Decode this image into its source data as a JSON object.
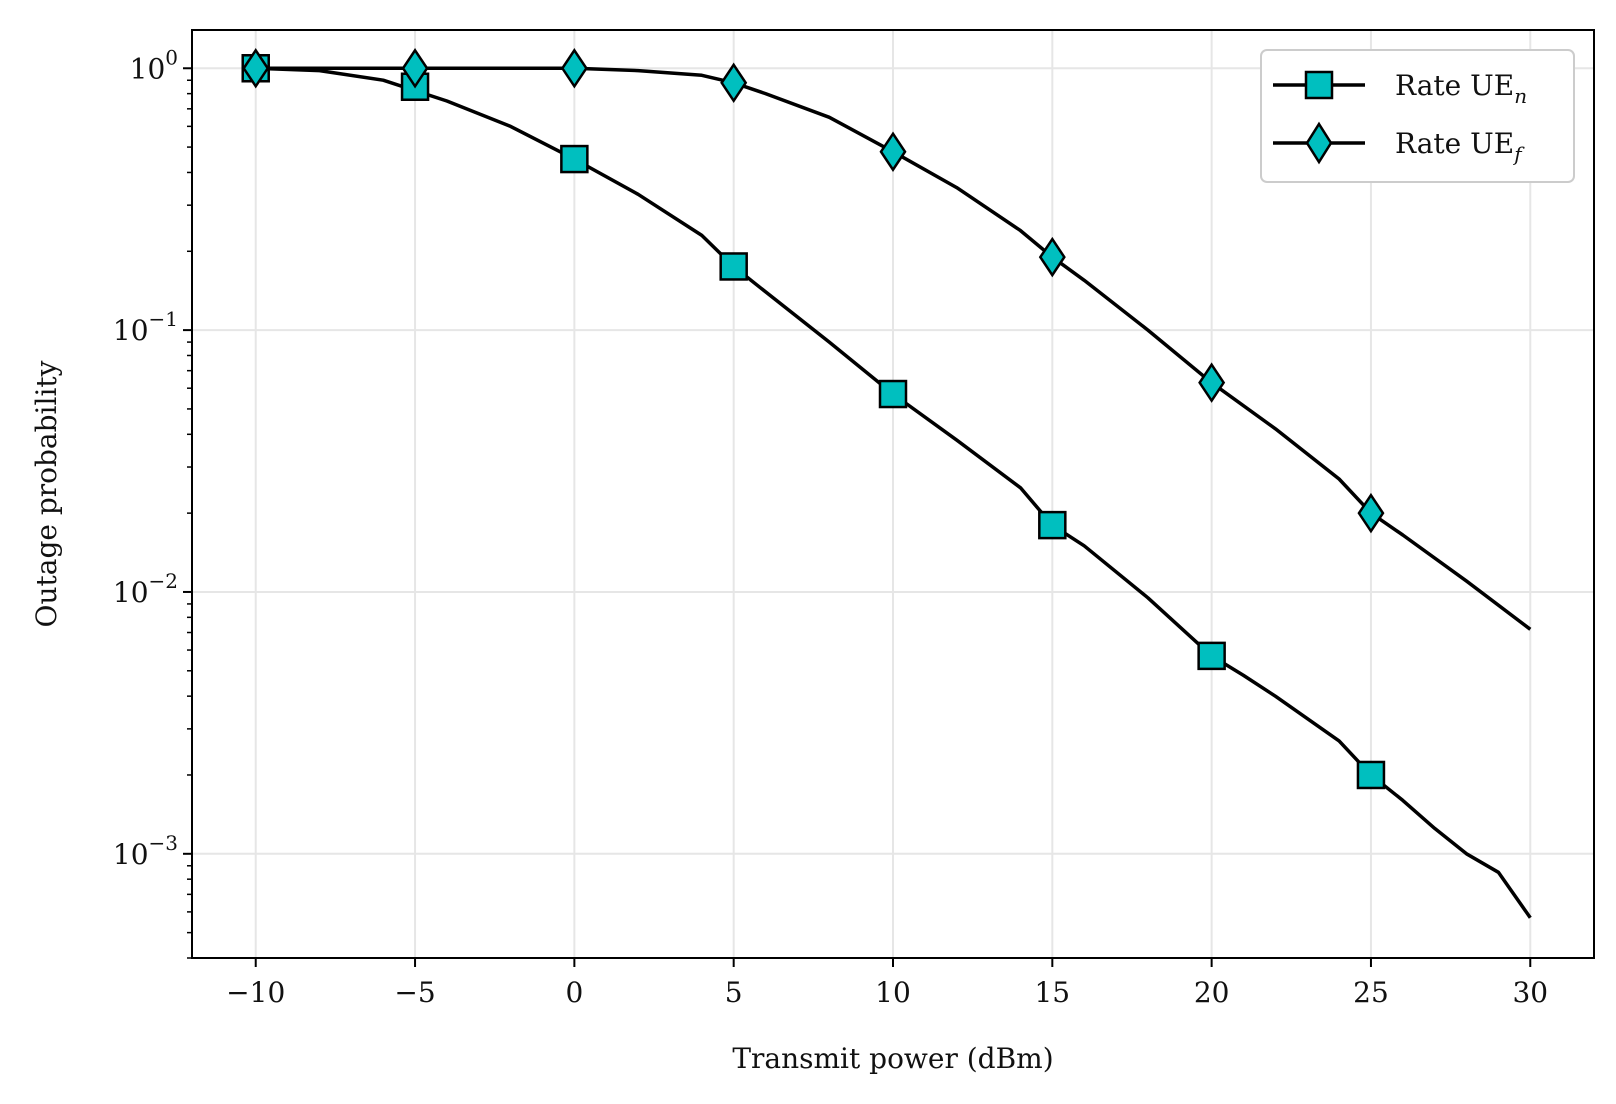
{
  "chart_data": {
    "type": "line",
    "title": "",
    "xlabel": "Transmit power (dBm)",
    "ylabel": "Outage probability",
    "xlim": [
      -12,
      32
    ],
    "ylim": [
      0.0004,
      1.4
    ],
    "yscale": "log",
    "grid": true,
    "legend_position": "top-right",
    "x_ticks": [
      "−10",
      "−5",
      "0",
      "5",
      "10",
      "15",
      "20",
      "25",
      "30"
    ],
    "x_tick_values": [
      -10,
      -5,
      0,
      5,
      10,
      15,
      20,
      25,
      30
    ],
    "y_ticks": [
      {
        "base": "10",
        "exp": "0",
        "value": 1
      },
      {
        "base": "10",
        "exp": "−1",
        "value": 0.1
      },
      {
        "base": "10",
        "exp": "−2",
        "value": 0.01
      },
      {
        "base": "10",
        "exp": "−3",
        "value": 0.001
      }
    ],
    "series": [
      {
        "name": "Rate UE",
        "subscript": "n",
        "marker": "square",
        "color": "#00BFBF",
        "line_color": "#000000",
        "x": [
          -10,
          -8,
          -6,
          -4,
          -2,
          0,
          2,
          4,
          5,
          6,
          8,
          10,
          12,
          14,
          15,
          16,
          18,
          20,
          21,
          22,
          24,
          25,
          26,
          27,
          28,
          29,
          30
        ],
        "y": [
          1.0,
          0.98,
          0.9,
          0.75,
          0.6,
          0.45,
          0.33,
          0.23,
          0.175,
          0.14,
          0.09,
          0.057,
          0.038,
          0.025,
          0.018,
          0.015,
          0.0095,
          0.0057,
          0.0048,
          0.004,
          0.0027,
          0.002,
          0.0016,
          0.00125,
          0.001,
          0.00085,
          0.00057
        ],
        "marker_x": [
          -10,
          -5,
          0,
          5,
          10,
          15,
          20,
          25
        ],
        "marker_y": [
          1.0,
          0.85,
          0.45,
          0.175,
          0.057,
          0.018,
          0.0057,
          0.002
        ]
      },
      {
        "name": "Rate UE",
        "subscript": "f",
        "marker": "diamond",
        "color": "#00BFBF",
        "line_color": "#000000",
        "x": [
          -10,
          -5,
          0,
          2,
          4,
          5,
          6,
          8,
          10,
          12,
          14,
          15,
          16,
          18,
          20,
          22,
          24,
          25,
          26,
          28,
          30
        ],
        "y": [
          1.0,
          1.0,
          1.0,
          0.98,
          0.94,
          0.88,
          0.8,
          0.65,
          0.48,
          0.35,
          0.24,
          0.19,
          0.155,
          0.1,
          0.063,
          0.042,
          0.027,
          0.02,
          0.0165,
          0.011,
          0.0072
        ],
        "marker_x": [
          -10,
          -5,
          0,
          5,
          10,
          15,
          20,
          25
        ],
        "marker_y": [
          1.0,
          1.0,
          1.0,
          0.88,
          0.48,
          0.19,
          0.063,
          0.02
        ]
      }
    ]
  }
}
